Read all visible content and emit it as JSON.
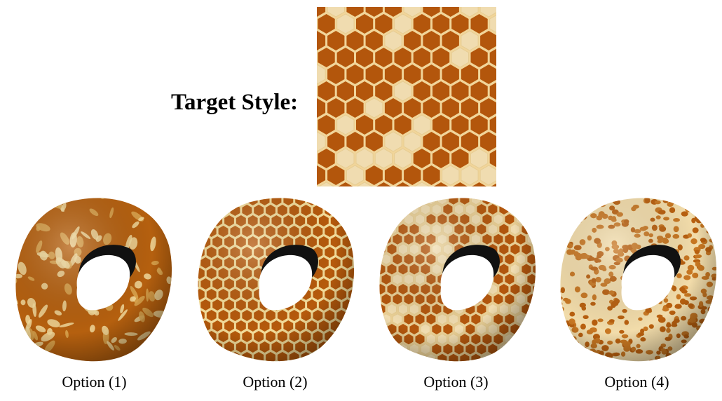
{
  "target": {
    "label": "Target Style:",
    "image_alt": "honeycomb texture",
    "colors": {
      "cell": "#b3560c",
      "border": "#f1d59a",
      "pale": "#f0dcb0"
    }
  },
  "options": [
    {
      "label": "Option (1)",
      "style": "marbled"
    },
    {
      "label": "Option (2)",
      "style": "honeycomb"
    },
    {
      "label": "Option (3)",
      "style": "honeycomb-mixed"
    },
    {
      "label": "Option (4)",
      "style": "spots"
    }
  ]
}
